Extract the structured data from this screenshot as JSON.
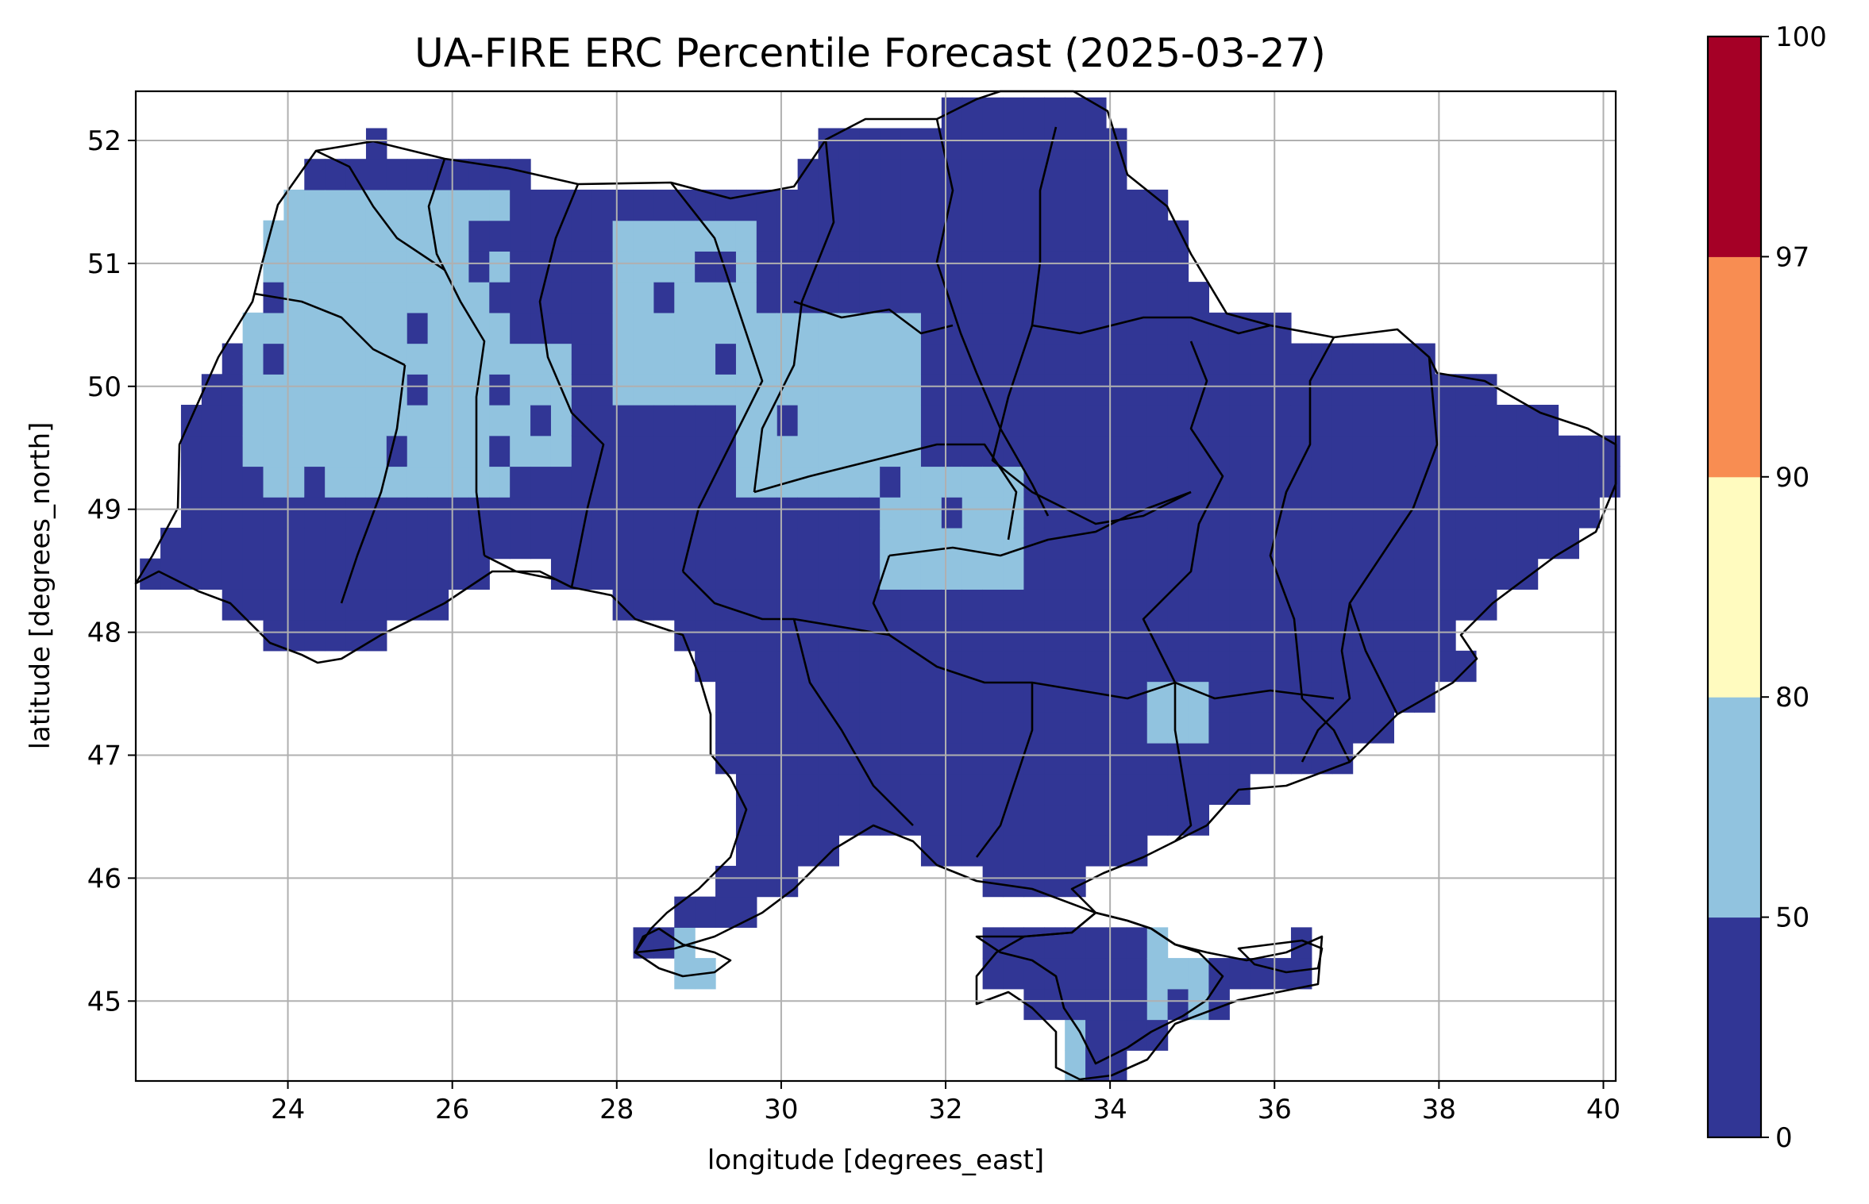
{
  "title": "UA-FIRE ERC Percentile Forecast (2025-03-27)",
  "map": {
    "xlabel": "longitude [degrees_east]",
    "ylabel": "latitude [degrees_north]",
    "xlim": [
      22.15,
      40.15
    ],
    "ylim": [
      44.35,
      52.4
    ],
    "xticks": [
      24,
      26,
      28,
      30,
      32,
      34,
      36,
      38,
      40
    ],
    "yticks": [
      45,
      46,
      47,
      48,
      49,
      50,
      51,
      52
    ],
    "grid": true,
    "cell_size_deg": 0.25,
    "low_color": "#313695",
    "high_color": "#91c3df",
    "border_color": "#000000"
  },
  "colorbar": {
    "bounds": [
      0,
      50,
      80,
      90,
      97,
      100
    ],
    "colors": [
      "#313695",
      "#91c3df",
      "#fffbbf",
      "#f88d52",
      "#a50026"
    ],
    "tick_labels": [
      "0",
      "50",
      "80",
      "90",
      "97",
      "100"
    ]
  },
  "chart_data": {
    "type": "heatmap",
    "title": "UA-FIRE ERC Percentile Forecast (2025-03-27)",
    "xlabel": "longitude [degrees_east]",
    "ylabel": "latitude [degrees_north]",
    "value_classes": [
      "0-50",
      "50-80",
      "80-90",
      "90-97",
      "97-100"
    ],
    "dominant_class": "0-50",
    "elevated_regions_50_80": [
      {
        "lon": [
          23.4,
          26.8
        ],
        "lat": [
          49.2,
          51.6
        ]
      },
      {
        "lon": [
          25.5,
          27.5
        ],
        "lat": [
          49.4,
          50.4
        ]
      },
      {
        "lon": [
          28.0,
          29.6
        ],
        "lat": [
          49.8,
          51.4
        ]
      },
      {
        "lon": [
          29.4,
          31.8
        ],
        "lat": [
          49.2,
          50.6
        ]
      },
      {
        "lon": [
          31.2,
          32.9
        ],
        "lat": [
          48.4,
          49.4
        ]
      },
      {
        "lon": [
          34.4,
          35.1
        ],
        "lat": [
          47.2,
          47.6
        ]
      },
      {
        "lon": [
          28.6,
          29.3
        ],
        "lat": [
          45.2,
          45.6
        ]
      },
      {
        "lon": [
          34.4,
          35.1
        ],
        "lat": [
          44.8,
          45.8
        ]
      },
      {
        "lon": [
          33.2,
          33.8
        ],
        "lat": [
          44.4,
          44.9
        ]
      }
    ],
    "max_class_present": "50-80"
  }
}
